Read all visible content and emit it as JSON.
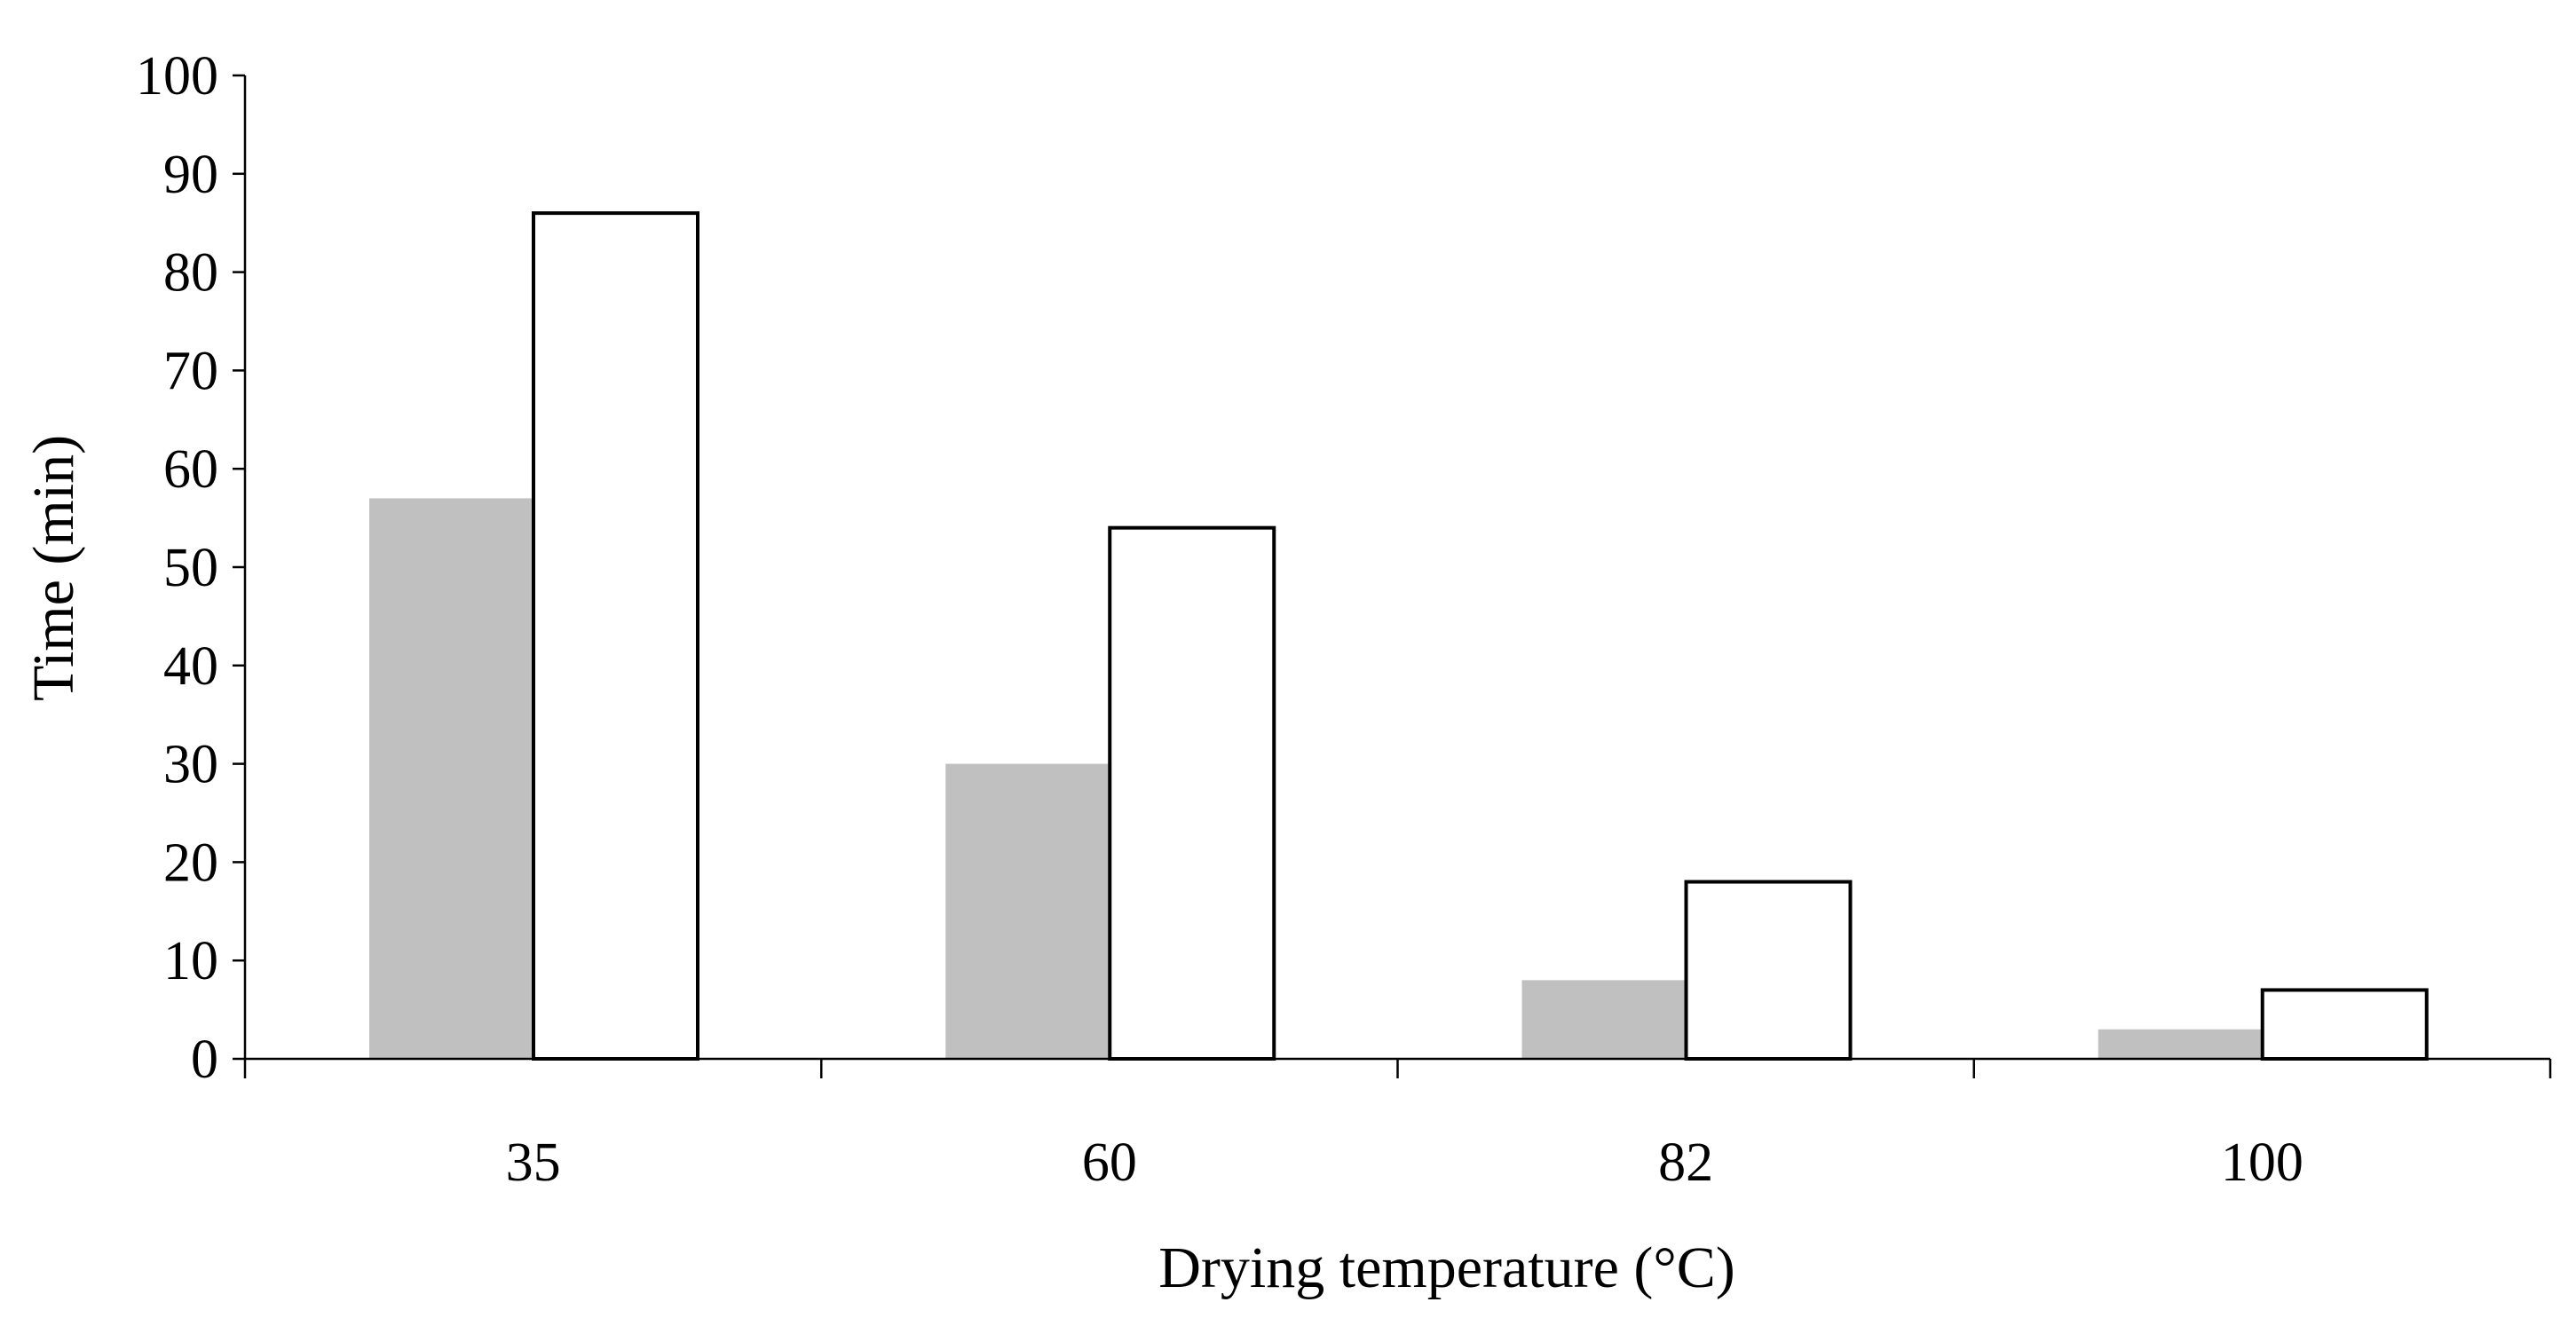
{
  "chart_data": {
    "type": "bar",
    "title": "",
    "xlabel": "Drying temperature (°C)",
    "ylabel": "Time (min)",
    "categories": [
      "35",
      "60",
      "82",
      "100"
    ],
    "series": [
      {
        "name": "",
        "values": [
          57,
          30,
          8,
          3
        ],
        "color": "#c0c0c0",
        "outline": false
      },
      {
        "name": "",
        "values": [
          86,
          54,
          18,
          7
        ],
        "color": "#ffffff",
        "outline": true
      }
    ],
    "ylim": [
      0,
      100
    ],
    "yticks": [
      0,
      10,
      20,
      30,
      40,
      50,
      60,
      70,
      80,
      90,
      100
    ],
    "grid": false,
    "legend": "none"
  }
}
